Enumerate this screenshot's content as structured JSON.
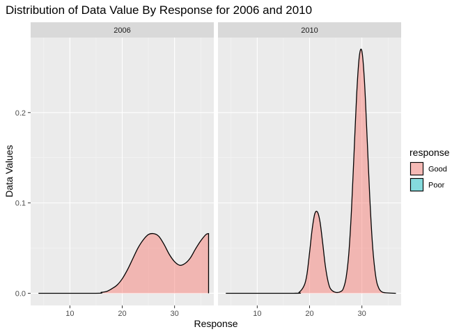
{
  "chart_data": {
    "type": "area",
    "title": "Distribution of Data Value By Response for 2006 and 2010",
    "xlabel": "Response",
    "ylabel": "Data Values",
    "xlim": [
      2.5,
      37.5
    ],
    "ylim": [
      -0.0135,
      0.283
    ],
    "x_ticks": [
      10,
      20,
      30
    ],
    "y_ticks": [
      0.0,
      0.1,
      0.2
    ],
    "x_tick_labels": [
      "10",
      "20",
      "30"
    ],
    "y_tick_labels": [
      "0.0",
      "0.1",
      "0.2"
    ],
    "grid": true,
    "legend": {
      "title": "response",
      "position": "right",
      "entries": [
        {
          "label": "Good",
          "color": "#F8766D"
        },
        {
          "label": "Poor",
          "color": "#00BFC4"
        }
      ]
    },
    "panels": [
      {
        "strip": "2006",
        "series": [
          {
            "name": "Good",
            "x": [
              4,
              15,
              16,
              17,
              18,
              19,
              20,
              21,
              22,
              23,
              24,
              25,
              26,
              27,
              28,
              29,
              30,
              31,
              32,
              33,
              34,
              35,
              36,
              36.5
            ],
            "y": [
              0,
              0,
              0.001,
              0.002,
              0.005,
              0.009,
              0.016,
              0.026,
              0.038,
              0.05,
              0.059,
              0.065,
              0.066,
              0.063,
              0.054,
              0.043,
              0.035,
              0.031,
              0.033,
              0.039,
              0.049,
              0.058,
              0.065,
              0.066
            ]
          }
        ]
      },
      {
        "strip": "2010",
        "series": [
          {
            "name": "Good",
            "x": [
              4,
              17,
              18,
              19,
              19.5,
              20,
              20.5,
              21,
              21.5,
              22,
              22.5,
              23,
              23.5,
              24,
              25,
              26,
              26.5,
              27,
              27.5,
              28,
              28.5,
              29,
              29.5,
              30,
              30.5,
              31,
              31.5,
              32,
              32.5,
              33,
              34,
              36.5
            ],
            "y": [
              0,
              0,
              0.001,
              0.009,
              0.021,
              0.045,
              0.071,
              0.088,
              0.09,
              0.079,
              0.056,
              0.031,
              0.014,
              0.005,
              0.001,
              0.002,
              0.006,
              0.018,
              0.044,
              0.091,
              0.155,
              0.22,
              0.262,
              0.268,
              0.234,
              0.172,
              0.107,
              0.056,
              0.025,
              0.009,
              0.001,
              0
            ]
          }
        ]
      }
    ]
  }
}
